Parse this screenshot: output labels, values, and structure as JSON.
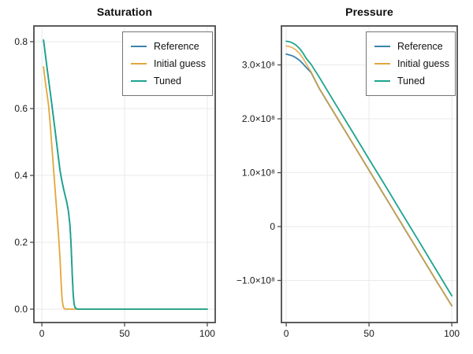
{
  "figure": {
    "background": "#ffffff"
  },
  "chart_data": [
    {
      "type": "line",
      "title": "Saturation",
      "xlabel": "",
      "ylabel": "",
      "xlim": [
        -4.8,
        104.8
      ],
      "ylim": [
        -0.04,
        0.847
      ],
      "grid": true,
      "legend_position": "top-right",
      "xticks": [
        {
          "v": 0,
          "label": "0"
        },
        {
          "v": 50,
          "label": "50"
        },
        {
          "v": 100,
          "label": "100"
        }
      ],
      "yticks": [
        {
          "v": 0.8,
          "label": "0.8"
        },
        {
          "v": 0.6,
          "label": "0.6"
        },
        {
          "v": 0.4,
          "label": "0.4"
        },
        {
          "v": 0.2,
          "label": "0.2"
        },
        {
          "v": 0.0,
          "label": "0.0"
        }
      ],
      "series": [
        {
          "name": "Reference",
          "color": "#3b82ac",
          "points": [
            [
              1,
              0.805
            ],
            [
              2,
              0.766
            ],
            [
              3,
              0.727
            ],
            [
              4,
              0.689
            ],
            [
              5,
              0.651
            ],
            [
              6,
              0.613
            ],
            [
              7,
              0.574
            ],
            [
              8,
              0.534
            ],
            [
              9,
              0.494
            ],
            [
              10,
              0.453
            ],
            [
              11,
              0.414
            ],
            [
              12,
              0.386
            ],
            [
              13,
              0.362
            ],
            [
              14,
              0.341
            ],
            [
              15,
              0.321
            ],
            [
              16,
              0.296
            ],
            [
              17,
              0.252
            ],
            [
              17.6,
              0.2
            ],
            [
              18,
              0.155
            ],
            [
              18.5,
              0.09
            ],
            [
              19,
              0.042
            ],
            [
              19.5,
              0.016
            ],
            [
              20,
              0.006
            ],
            [
              21,
              0.001
            ],
            [
              22,
              0
            ],
            [
              100,
              0
            ]
          ]
        },
        {
          "name": "Initial guess",
          "color": "#e3a63c",
          "points": [
            [
              1,
              0.725
            ],
            [
              2,
              0.683
            ],
            [
              3,
              0.648
            ],
            [
              4,
              0.612
            ],
            [
              5,
              0.556
            ],
            [
              6,
              0.49
            ],
            [
              7,
              0.424
            ],
            [
              8,
              0.358
            ],
            [
              9,
              0.293
            ],
            [
              10,
              0.227
            ],
            [
              11,
              0.148
            ],
            [
              11.7,
              0.075
            ],
            [
              12.3,
              0.026
            ],
            [
              13,
              0.006
            ],
            [
              13.7,
              0.001
            ],
            [
              15,
              0
            ],
            [
              100,
              0
            ]
          ]
        },
        {
          "name": "Tuned",
          "color": "#1da48e",
          "points": [
            [
              1,
              0.805
            ],
            [
              2,
              0.766
            ],
            [
              3,
              0.727
            ],
            [
              4,
              0.689
            ],
            [
              5,
              0.651
            ],
            [
              6,
              0.613
            ],
            [
              7,
              0.574
            ],
            [
              8,
              0.534
            ],
            [
              9,
              0.494
            ],
            [
              10,
              0.453
            ],
            [
              11,
              0.414
            ],
            [
              12,
              0.386
            ],
            [
              13,
              0.362
            ],
            [
              14,
              0.341
            ],
            [
              15,
              0.321
            ],
            [
              16,
              0.296
            ],
            [
              17,
              0.252
            ],
            [
              17.6,
              0.2
            ],
            [
              18,
              0.155
            ],
            [
              18.5,
              0.09
            ],
            [
              19,
              0.042
            ],
            [
              19.5,
              0.016
            ],
            [
              20,
              0.006
            ],
            [
              21,
              0.001
            ],
            [
              22,
              0
            ],
            [
              100,
              0
            ]
          ]
        }
      ]
    },
    {
      "type": "line",
      "title": "Pressure",
      "xlabel": "",
      "ylabel": "",
      "xlim": [
        -2.9,
        103.3
      ],
      "ylim": [
        -178100000.0,
        372300000.0
      ],
      "grid": true,
      "legend_position": "top-right",
      "xticks": [
        {
          "v": 0,
          "label": "0"
        },
        {
          "v": 50,
          "label": "50"
        },
        {
          "v": 100,
          "label": "100"
        }
      ],
      "yticks": [
        {
          "v": 300000000.0,
          "label": "3.0×10⁸"
        },
        {
          "v": 200000000.0,
          "label": "2.0×10⁸"
        },
        {
          "v": 100000000.0,
          "label": "1.0×10⁸"
        },
        {
          "v": 0,
          "label": "0"
        },
        {
          "v": -100000000.0,
          "label": "−1.0×10⁸"
        }
      ],
      "series": [
        {
          "name": "Reference",
          "color": "#3b82ac",
          "points": [
            [
              0,
              320000000.0
            ],
            [
              2,
              318500000.0
            ],
            [
              4,
              316500000.0
            ],
            [
              6,
              313000000.0
            ],
            [
              8,
              308500000.0
            ],
            [
              10,
              302500000.0
            ],
            [
              12,
              295500000.0
            ],
            [
              15,
              286000000.0
            ],
            [
              20,
              256000000.0
            ],
            [
              30,
              205500000.0
            ],
            [
              40,
              155000000.0
            ],
            [
              50,
              104500000.0
            ],
            [
              60,
              54000000.0
            ],
            [
              70,
              3500000.0
            ],
            [
              80,
              -47000000.0
            ],
            [
              90,
              -97500000.0
            ],
            [
              100,
              -147000000.0
            ]
          ]
        },
        {
          "name": "Initial guess",
          "color": "#e3a63c",
          "opacity": 0.82,
          "points": [
            [
              0,
              335000000.0
            ],
            [
              2,
              334000000.0
            ],
            [
              4,
              331500000.0
            ],
            [
              6,
              327500000.0
            ],
            [
              8,
              321500000.0
            ],
            [
              10,
              313000000.0
            ],
            [
              12,
              302500000.0
            ],
            [
              15,
              287000000.0
            ],
            [
              20,
              256500000.0
            ],
            [
              30,
              206000000.0
            ],
            [
              40,
              155500000.0
            ],
            [
              50,
              105000000.0
            ],
            [
              60,
              54500000.0
            ],
            [
              70,
              4000000.0
            ],
            [
              80,
              -46500000.0
            ],
            [
              90,
              -97000000.0
            ],
            [
              100,
              -147500000.0
            ]
          ]
        },
        {
          "name": "Tuned",
          "color": "#1da48e",
          "points": [
            [
              0,
              344000000.0
            ],
            [
              2,
              343000000.0
            ],
            [
              4,
              340500000.0
            ],
            [
              6,
              336500000.0
            ],
            [
              8,
              330500000.0
            ],
            [
              10,
              322500000.0
            ],
            [
              12,
              312500000.0
            ],
            [
              15,
              301000000.0
            ],
            [
              20,
              277000000.0
            ],
            [
              30,
              226000000.0
            ],
            [
              40,
              176000000.0
            ],
            [
              50,
              125000000.0
            ],
            [
              60,
              75000000.0
            ],
            [
              70,
              24000000.0
            ],
            [
              80,
              -26500000.0
            ],
            [
              90,
              -77500000.0
            ],
            [
              100,
              -128500000.0
            ]
          ]
        }
      ]
    }
  ]
}
